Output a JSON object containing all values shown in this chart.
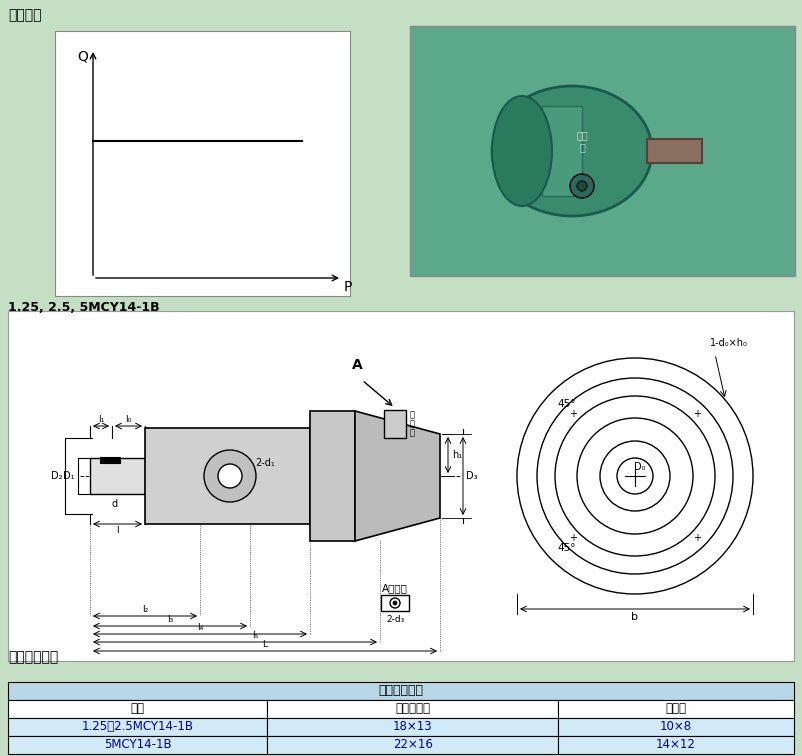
{
  "bg_color": "#c5dfc5",
  "title_text": "特性曲线",
  "model_text": "1.25, 2.5, 5MCY14-1B",
  "pipe_title": "推荐管道尺寸",
  "table_header": "推荐管道尺寸",
  "col_headers": [
    "规格",
    "进出口油管",
    "回油口"
  ],
  "row1": [
    "1.25、2.5MCY14-1B",
    "18×13",
    "10×8"
  ],
  "row2": [
    "5MCY14-1B",
    "22×16",
    "14×12"
  ],
  "table_header_bg": "#b8d8e8",
  "col_header_bg": "#ffffff",
  "row_data_bg": "#d0eaf8",
  "row2_bg": "#d0eaf8",
  "diagram_bg": "#ffffff",
  "q_label": "Q",
  "p_label": "P",
  "port_label": "接\n油\n口",
  "a_view_label": "A向视图",
  "label_2d3": "2-d₃",
  "label_2d1": "2-d₁",
  "label_D3": "D₃",
  "label_D0": "D₀",
  "label_1d0h0": "1-d₀×h₀",
  "label_b": "b",
  "label_h1": "h₁",
  "label_45_1": "45°",
  "label_45_2": "45°",
  "label_D1": "D₁",
  "label_D2": "D₂",
  "label_d": "d",
  "label_l1": "l₁",
  "label_l0": "l₀",
  "label_l": "l",
  "label_l2": "l₂",
  "label_l3": "l₃",
  "label_l4": "l₄",
  "label_l5": "l₅",
  "label_L": "L",
  "label_A": "A"
}
